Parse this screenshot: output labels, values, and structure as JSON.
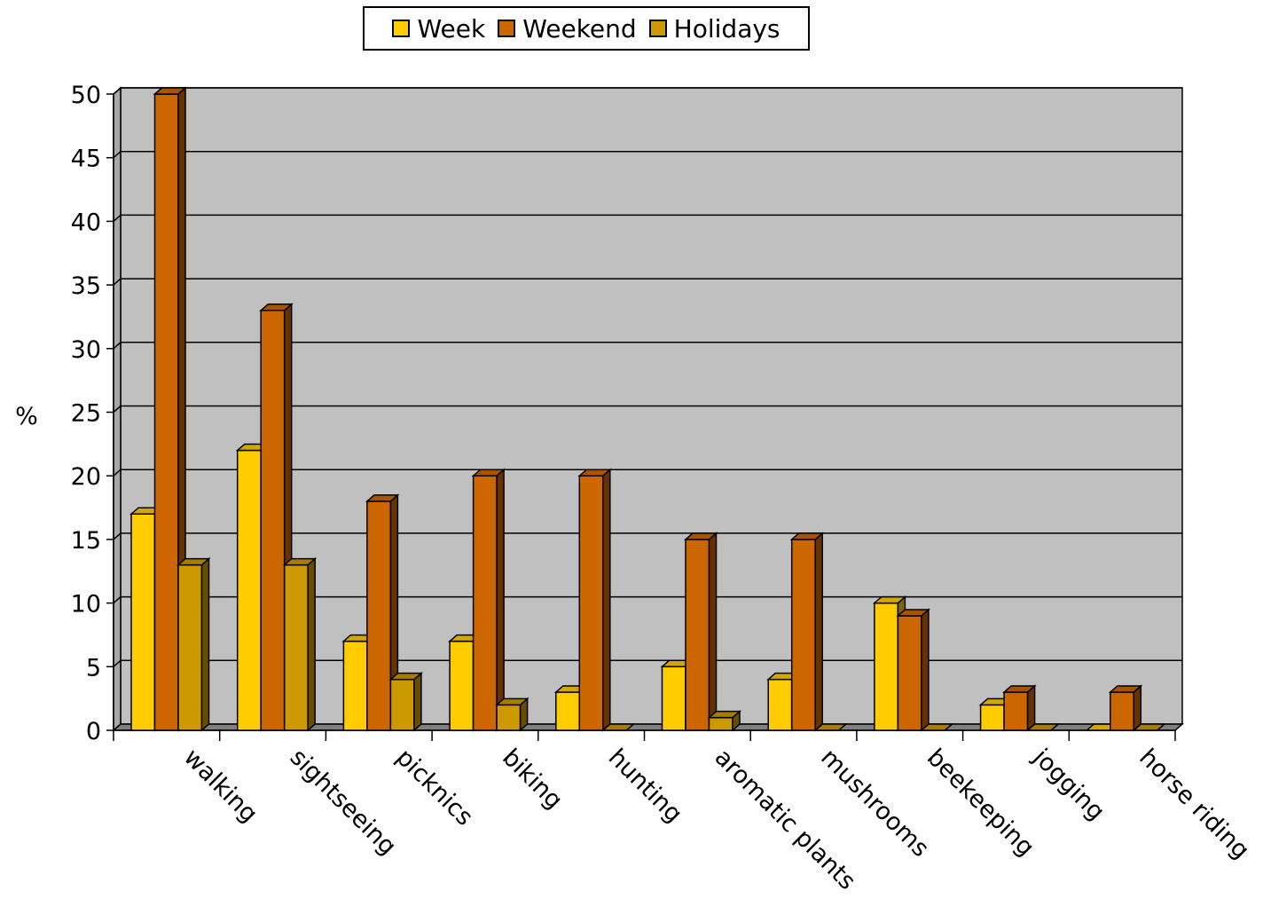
{
  "chart_data": {
    "type": "bar",
    "title": "",
    "xlabel": "",
    "ylabel": "%",
    "ylim": [
      0,
      50
    ],
    "yticks": [
      0,
      5,
      10,
      15,
      20,
      25,
      30,
      35,
      40,
      45,
      50
    ],
    "grid": true,
    "legend_position": "top-center",
    "categories": [
      "walking",
      "sightseeing",
      "picknics",
      "biking",
      "hunting",
      "aromatic plants",
      "mushrooms",
      "beekeeping",
      "jogging",
      "horse riding"
    ],
    "series": [
      {
        "name": "Week",
        "color": "#FFCC00",
        "values": [
          17,
          22,
          7,
          7,
          3,
          5,
          4,
          10,
          2,
          0
        ]
      },
      {
        "name": "Weekend",
        "color": "#CC6600",
        "values": [
          50,
          33,
          18,
          20,
          20,
          15,
          15,
          9,
          3,
          3
        ]
      },
      {
        "name": "Holidays",
        "color": "#CC9900",
        "values": [
          13,
          13,
          4,
          2,
          0,
          1,
          0,
          0,
          0,
          0
        ]
      }
    ]
  }
}
